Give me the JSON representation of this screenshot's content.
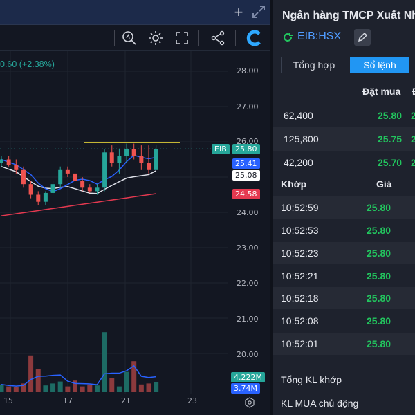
{
  "chart": {
    "change_text": "0.60 (+2.38%)",
    "price_axis": [
      "28.00",
      "27.00",
      "26.00",
      "24.00",
      "23.00",
      "22.00",
      "21.00",
      "20.00"
    ],
    "date_labels": [
      "15",
      "17",
      "21",
      "23"
    ],
    "symbol_tag": "EIB",
    "last_price_tag": "25.80",
    "ma_blue_tag": "25.41",
    "ma_white_tag": "25.08",
    "ma_red_tag": "24.58",
    "volume_tag_1": "4.222M",
    "volume_tag_2": "3.74M",
    "colors": {
      "up": "#26a69a",
      "down": "#ef5350",
      "ma_blue": "#2962ff",
      "ma_white": "#e0e3eb",
      "ma_red": "#e53950",
      "resistance": "#ffeb3b",
      "background": "#131722"
    }
  },
  "chart_data": {
    "type": "candlestick",
    "ylim": [
      19.0,
      28.8
    ],
    "x_ticks": [
      "15",
      "17",
      "21",
      "23"
    ],
    "candles": [
      {
        "o": 25.4,
        "h": 25.6,
        "l": 25.3,
        "c": 25.5
      },
      {
        "o": 25.5,
        "h": 25.6,
        "l": 25.3,
        "c": 25.35
      },
      {
        "o": 25.35,
        "h": 25.5,
        "l": 25.1,
        "c": 25.2
      },
      {
        "o": 25.2,
        "h": 25.3,
        "l": 24.7,
        "c": 24.8
      },
      {
        "o": 24.8,
        "h": 24.9,
        "l": 24.4,
        "c": 24.5
      },
      {
        "o": 24.5,
        "h": 24.6,
        "l": 24.2,
        "c": 24.3
      },
      {
        "o": 24.3,
        "h": 24.6,
        "l": 24.2,
        "c": 24.55
      },
      {
        "o": 24.55,
        "h": 24.9,
        "l": 24.5,
        "c": 24.8
      },
      {
        "o": 24.8,
        "h": 25.3,
        "l": 24.7,
        "c": 25.2
      },
      {
        "o": 25.2,
        "h": 25.3,
        "l": 25.0,
        "c": 25.1
      },
      {
        "o": 25.1,
        "h": 25.2,
        "l": 24.8,
        "c": 24.9
      },
      {
        "o": 24.9,
        "h": 25.0,
        "l": 24.6,
        "c": 24.7
      },
      {
        "o": 24.7,
        "h": 24.8,
        "l": 24.55,
        "c": 24.6
      },
      {
        "o": 24.6,
        "h": 24.8,
        "l": 24.5,
        "c": 24.7
      },
      {
        "o": 24.7,
        "h": 25.8,
        "l": 24.6,
        "c": 25.7
      },
      {
        "o": 25.7,
        "h": 25.9,
        "l": 25.3,
        "c": 25.4
      },
      {
        "o": 25.4,
        "h": 25.8,
        "l": 25.1,
        "c": 25.6
      },
      {
        "o": 25.6,
        "h": 25.95,
        "l": 25.4,
        "c": 25.8
      },
      {
        "o": 25.8,
        "h": 25.95,
        "l": 25.5,
        "c": 25.6
      },
      {
        "o": 25.6,
        "h": 25.9,
        "l": 25.2,
        "c": 25.4
      },
      {
        "o": 25.4,
        "h": 25.9,
        "l": 25.1,
        "c": 25.2
      },
      {
        "o": 25.2,
        "h": 25.9,
        "l": 25.2,
        "c": 25.8
      }
    ],
    "volume": [
      0.8,
      0.6,
      0.5,
      0.9,
      3.8,
      2.4,
      0.7,
      0.9,
      1.1,
      0.6,
      1.2,
      0.6,
      0.8,
      0.7,
      6.2,
      1.5,
      0.6,
      2.1,
      3.2,
      0.8,
      0.9,
      1.0
    ],
    "resistance": 25.98
  },
  "panel": {
    "company": "Ngân hàng TMCP Xuất Nh",
    "symbol": "EIB:HSX",
    "tabs": [
      "Tổng hợp",
      "Sổ lệnh"
    ],
    "bid_header": "Đặt mua",
    "book": [
      {
        "qty": "62,400",
        "price": "25.80"
      },
      {
        "qty": "125,800",
        "price": "25.75"
      },
      {
        "qty": "42,200",
        "price": "25.70"
      }
    ],
    "trade_headers": {
      "time": "Khớp",
      "price": "Giá"
    },
    "trades": [
      {
        "time": "10:52:59",
        "price": "25.80"
      },
      {
        "time": "10:52:53",
        "price": "25.80"
      },
      {
        "time": "10:52:23",
        "price": "25.80"
      },
      {
        "time": "10:52:21",
        "price": "25.80"
      },
      {
        "time": "10:52:18",
        "price": "25.80"
      },
      {
        "time": "10:52:08",
        "price": "25.80"
      },
      {
        "time": "10:52:01",
        "price": "25.80"
      }
    ],
    "summary": [
      "Tổng KL khớp",
      "KL MUA chủ động"
    ]
  }
}
